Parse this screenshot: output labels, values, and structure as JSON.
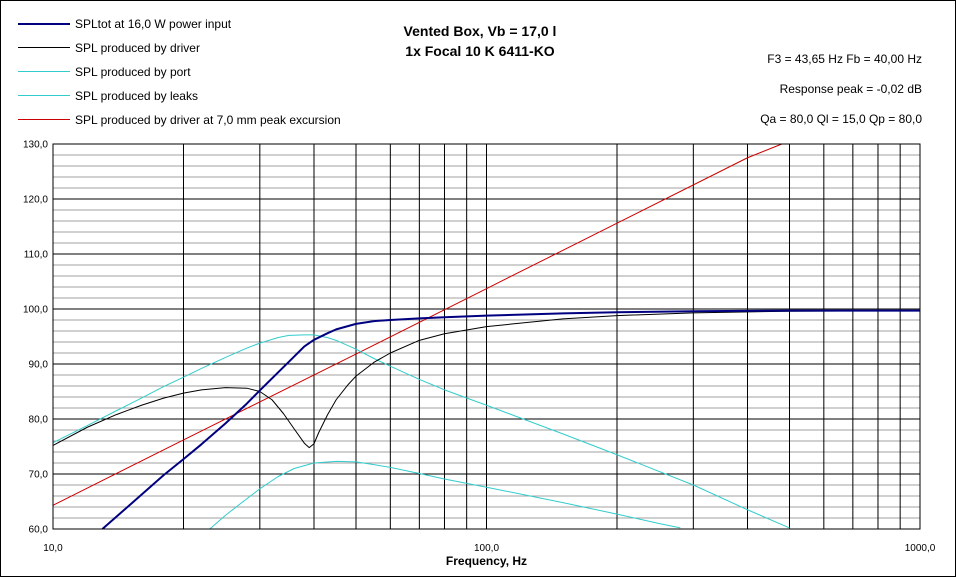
{
  "chart_data": {
    "type": "line",
    "title": [
      "Vented Box, Vb = 17,0 l",
      "1x Focal 10 K 6411-KO"
    ],
    "info": [
      "F3 = 43,65 Hz  Fb = 40,00 Hz",
      "Response peak = -0,02 dB",
      "Qa = 80,0  Ql = 15,0  Qp = 80,0"
    ],
    "xlabel": "Frequency, Hz",
    "ylabel": "",
    "x_scale": "log",
    "xlim": [
      10,
      1000
    ],
    "ylim": [
      60,
      130
    ],
    "x_tick_labels": [
      "10,0",
      "100,0",
      "1000,0"
    ],
    "y_tick_labels": [
      "60,0",
      "70,0",
      "80,0",
      "90,0",
      "100,0",
      "110,0",
      "120,0",
      "130,0"
    ],
    "grid": true,
    "legend_position": "top-left",
    "series": [
      {
        "name": "SPLtot at 16,0 W power input",
        "color": "#000080",
        "width": 2,
        "points": [
          [
            13,
            60
          ],
          [
            15,
            64.3
          ],
          [
            18,
            69.8
          ],
          [
            20,
            72.7
          ],
          [
            22,
            75.4
          ],
          [
            25,
            79.2
          ],
          [
            28,
            82.8
          ],
          [
            30,
            85.2
          ],
          [
            35,
            90.4
          ],
          [
            38,
            93.2
          ],
          [
            40,
            94.4
          ],
          [
            43,
            95.6
          ],
          [
            45,
            96.3
          ],
          [
            50,
            97.3
          ],
          [
            55,
            97.8
          ],
          [
            60,
            98.0
          ],
          [
            70,
            98.3
          ],
          [
            80,
            98.5
          ],
          [
            100,
            98.8
          ],
          [
            150,
            99.2
          ],
          [
            200,
            99.4
          ],
          [
            300,
            99.6
          ],
          [
            500,
            99.7
          ],
          [
            1000,
            99.7
          ]
        ]
      },
      {
        "name": "SPL produced by driver",
        "color": "#000000",
        "width": 1,
        "points": [
          [
            10,
            75.2
          ],
          [
            12,
            78.5
          ],
          [
            14,
            80.8
          ],
          [
            16,
            82.5
          ],
          [
            18,
            83.8
          ],
          [
            20,
            84.7
          ],
          [
            22,
            85.3
          ],
          [
            25,
            85.7
          ],
          [
            28,
            85.6
          ],
          [
            30,
            85
          ],
          [
            32,
            83.5
          ],
          [
            34,
            81
          ],
          [
            36,
            78.2
          ],
          [
            38,
            75.6
          ],
          [
            39,
            74.8
          ],
          [
            40,
            75.5
          ],
          [
            41,
            77.5
          ],
          [
            43,
            80.8
          ],
          [
            45,
            83.5
          ],
          [
            48,
            86.3
          ],
          [
            50,
            87.8
          ],
          [
            55,
            90.3
          ],
          [
            60,
            92.0
          ],
          [
            70,
            94.3
          ],
          [
            80,
            95.5
          ],
          [
            100,
            96.8
          ],
          [
            150,
            98.2
          ],
          [
            200,
            98.8
          ],
          [
            300,
            99.3
          ],
          [
            500,
            99.6
          ],
          [
            1000,
            99.7
          ]
        ]
      },
      {
        "name": "SPL produced by port",
        "color": "#33CCCC",
        "width": 1,
        "points": [
          [
            10,
            75.7
          ],
          [
            12,
            78.8
          ],
          [
            14,
            81.5
          ],
          [
            16,
            83.8
          ],
          [
            18,
            85.9
          ],
          [
            20,
            87.6
          ],
          [
            22,
            89.2
          ],
          [
            25,
            91.2
          ],
          [
            28,
            92.9
          ],
          [
            30,
            93.8
          ],
          [
            33,
            94.8
          ],
          [
            35,
            95.2
          ],
          [
            38,
            95.3
          ],
          [
            40,
            95.3
          ],
          [
            43,
            94.8
          ],
          [
            45,
            94.3
          ],
          [
            50,
            92.7
          ],
          [
            55,
            91.0
          ],
          [
            60,
            89.6
          ],
          [
            70,
            87.2
          ],
          [
            80,
            85.3
          ],
          [
            100,
            82.5
          ],
          [
            150,
            77.3
          ],
          [
            200,
            73.5
          ],
          [
            300,
            68.0
          ],
          [
            400,
            63.5
          ],
          [
            500,
            60.2
          ]
        ]
      },
      {
        "name": "SPL produced by leaks",
        "color": "#33CCCC",
        "width": 1,
        "points": [
          [
            23,
            60
          ],
          [
            25,
            62.5
          ],
          [
            28,
            65.5
          ],
          [
            30,
            67.3
          ],
          [
            33,
            69.5
          ],
          [
            36,
            71
          ],
          [
            40,
            72
          ],
          [
            45,
            72.3
          ],
          [
            50,
            72.2
          ],
          [
            55,
            71.7
          ],
          [
            60,
            71.2
          ],
          [
            70,
            70.1
          ],
          [
            80,
            69.1
          ],
          [
            100,
            67.6
          ],
          [
            150,
            64.8
          ],
          [
            200,
            62.7
          ],
          [
            250,
            61.0
          ],
          [
            280,
            60.2
          ]
        ]
      },
      {
        "name": "SPL produced by driver at 7,0 mm peak excursion",
        "color": "#CC0000",
        "width": 1,
        "points": [
          [
            10,
            64.3
          ],
          [
            20,
            76.2
          ],
          [
            50,
            91.8
          ],
          [
            100,
            103.7
          ],
          [
            200,
            115.6
          ],
          [
            400,
            127.5
          ],
          [
            480,
            130
          ]
        ]
      }
    ]
  }
}
